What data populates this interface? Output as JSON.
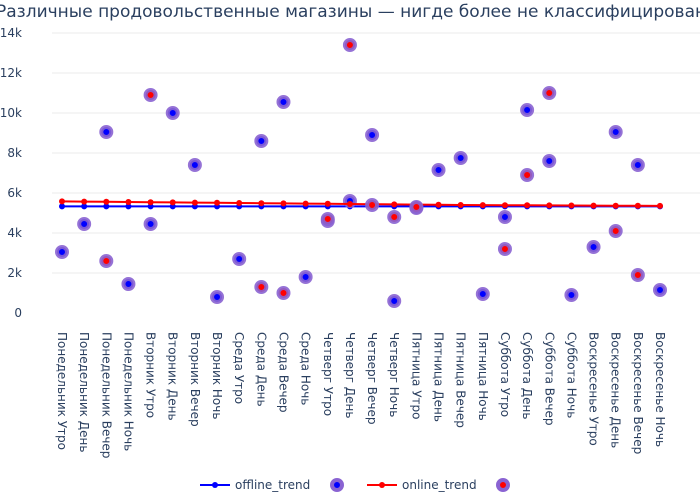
{
  "chart_data": {
    "type": "scatter",
    "title": "Различные продовольственные магазины — нигде более не классифицированные",
    "xlabel": "",
    "ylabel": "",
    "grid": true,
    "legend_position": "bottom",
    "ylim": [
      0,
      14000
    ],
    "y_ticks": [
      0,
      2000,
      4000,
      6000,
      8000,
      10000,
      12000,
      14000
    ],
    "y_tick_labels": [
      "0",
      "2k",
      "4k",
      "6k",
      "8k",
      "10k",
      "12k",
      "14k"
    ],
    "categories": [
      "Понедельник Утро",
      "Понедельник День",
      "Понедельник Вечер",
      "Понедельник Ночь",
      "Вторник Утро",
      "Вторник День",
      "Вторник Вечер",
      "Вторник Ночь",
      "Среда Утро",
      "Среда День",
      "Среда Вечер",
      "Среда Ночь",
      "Четверг Утро",
      "Четверг День",
      "Четверг Вечер",
      "Четверг Ночь",
      "Пятница Утро",
      "Пятница День",
      "Пятница Вечер",
      "Пятница Ночь",
      "Суббота Утро",
      "Суббота День",
      "Суббота Вечер",
      "Суббота Ночь",
      "Воскресенье Утро",
      "Воскресенье День",
      "Воскресенье Вечер",
      "Воскресенье Ночь"
    ],
    "series": [
      {
        "name": "offline_trend",
        "kind": "line",
        "color": "#0000ff",
        "values": [
          5330,
          5330,
          5330,
          5330,
          5330,
          5330,
          5330,
          5330,
          5330,
          5330,
          5330,
          5330,
          5330,
          5330,
          5330,
          5330,
          5330,
          5330,
          5330,
          5330,
          5330,
          5330,
          5330,
          5330,
          5330,
          5330,
          5330,
          5330
        ]
      },
      {
        "name": "",
        "kind": "markers",
        "color": "#0000ff",
        "outline": "#8a63d2",
        "values": [
          3050,
          4450,
          9050,
          1450,
          4450,
          10000,
          7400,
          800,
          2700,
          8600,
          10550,
          1800,
          4600,
          5600,
          8900,
          600,
          5250,
          7150,
          7750,
          950,
          4800,
          10150,
          7600,
          900,
          3300,
          9050,
          7400,
          1150
        ]
      },
      {
        "name": "online_trend",
        "kind": "line",
        "color": "#ff0000",
        "values": [
          5580,
          5570,
          5560,
          5550,
          5540,
          5530,
          5520,
          5510,
          5500,
          5490,
          5480,
          5470,
          5460,
          5450,
          5440,
          5430,
          5420,
          5410,
          5400,
          5395,
          5390,
          5385,
          5380,
          5375,
          5370,
          5365,
          5360,
          5355
        ]
      },
      {
        "name": "",
        "kind": "markers",
        "color": "#ff0000",
        "outline": "#8a63d2",
        "values": [
          null,
          null,
          2600,
          null,
          10900,
          null,
          null,
          null,
          null,
          1300,
          1000,
          null,
          4700,
          13400,
          5400,
          4800,
          5300,
          null,
          null,
          null,
          3200,
          6900,
          11000,
          null,
          null,
          4100,
          1900,
          null
        ]
      }
    ]
  }
}
